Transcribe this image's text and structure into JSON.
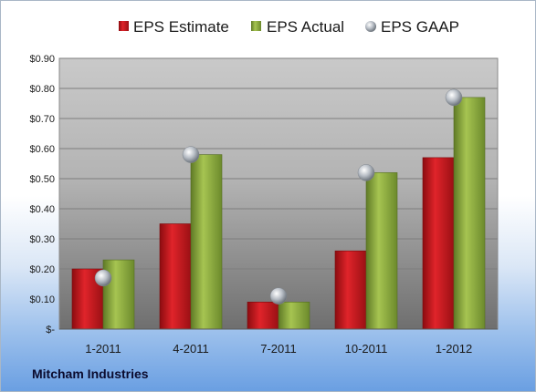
{
  "company": "Mitcham Industries",
  "colors": {
    "estimate": "#c0141b",
    "actual": "#8aaa3c",
    "gaap": "#9aa3ad"
  },
  "chart_data": {
    "type": "bar",
    "categories": [
      "1-2011",
      "4-2011",
      "7-2011",
      "10-2011",
      "1-2012"
    ],
    "series": [
      {
        "name": "EPS Estimate",
        "kind": "bar",
        "color": "#c0141b",
        "values": [
          0.2,
          0.35,
          0.09,
          0.26,
          0.57
        ]
      },
      {
        "name": "EPS Actual",
        "kind": "bar",
        "color": "#8aaa3c",
        "values": [
          0.23,
          0.58,
          0.09,
          0.52,
          0.77
        ]
      },
      {
        "name": "EPS GAAP",
        "kind": "marker",
        "color": "#9aa3ad",
        "values": [
          0.17,
          0.58,
          0.11,
          0.52,
          0.77
        ]
      }
    ],
    "y_ticks": [
      "$-",
      "$0.10",
      "$0.20",
      "$0.30",
      "$0.40",
      "$0.50",
      "$0.60",
      "$0.70",
      "$0.80",
      "$0.90"
    ],
    "ylim": [
      0,
      0.9
    ],
    "grid": true,
    "legend_position": "top"
  }
}
